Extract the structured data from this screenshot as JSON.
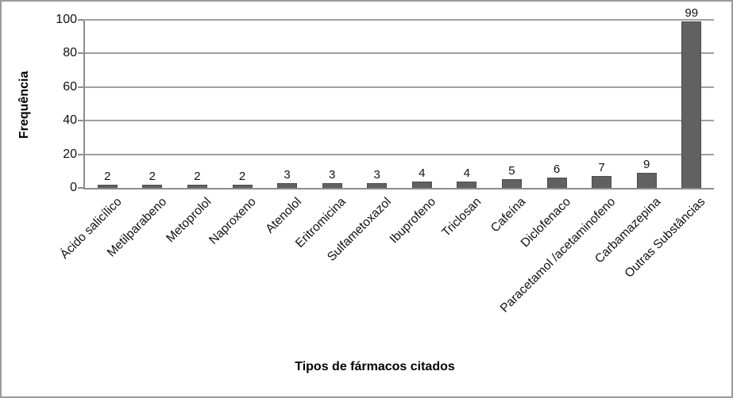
{
  "frame": {
    "background": "#ffffff",
    "border_color": "#9a9a9a"
  },
  "chart_data": {
    "type": "bar",
    "title": "",
    "xlabel": "Tipos de fármacos citados",
    "ylabel": "Frequência",
    "categories": [
      "Ácido salicílico",
      "Metilparabeno",
      "Metoprolol",
      "Naproxeno",
      "Atenolol",
      "Eritromicina",
      "Sulfametoxazol",
      "Ibuprofeno",
      "Triclosan",
      "Cafeína",
      "Diclofenaco",
      "Paracetamol /acetaminofeno",
      "Carbamazepina",
      "Outras Substâncias"
    ],
    "values": [
      2,
      2,
      2,
      2,
      3,
      3,
      3,
      4,
      4,
      5,
      6,
      7,
      9,
      99
    ],
    "data_labels_shown": true,
    "y_ticks": [
      0,
      20,
      40,
      60,
      80,
      100
    ],
    "ylim": [
      0,
      100
    ],
    "legend": "none",
    "grid": "horizontal",
    "colors": {
      "bar_fill": "#616161",
      "bar_border": "#4d4d4d",
      "gridline": "#9f9f9f",
      "axis_line": "#8c8c8c",
      "text": "#111111"
    }
  }
}
